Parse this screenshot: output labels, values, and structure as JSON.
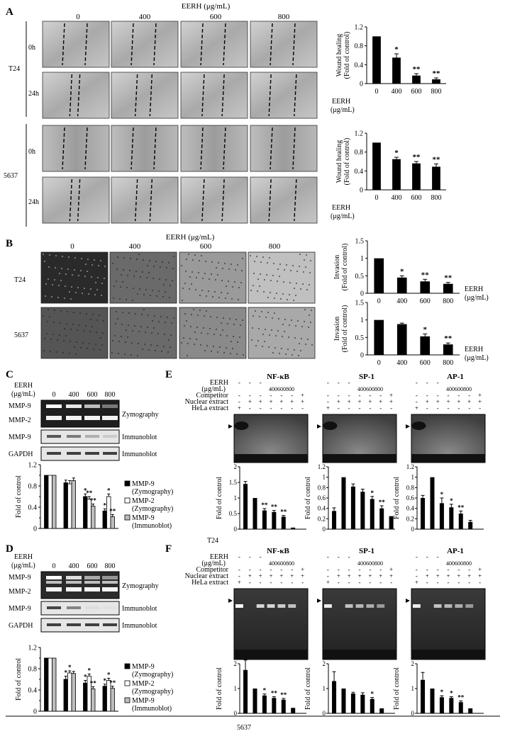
{
  "panels": {
    "A": {
      "label": "A",
      "header": "EERH (μg/mL)",
      "columns": [
        "0",
        "400",
        "600",
        "800"
      ],
      "rows": [
        "0h",
        "24h"
      ],
      "groups": [
        "T24",
        "5637"
      ],
      "charts": [
        {
          "type": "bar",
          "ylabel_1": "Wound healing",
          "ylabel_2": "(Fold of control)",
          "xlabel_1": "EERH",
          "xlabel_2": "(μg/mL)",
          "categories": [
            "0",
            "400",
            "600",
            "800"
          ],
          "values": [
            1.0,
            0.55,
            0.17,
            0.09
          ],
          "errors": [
            0.0,
            0.08,
            0.04,
            0.03
          ],
          "sig": [
            "",
            "*",
            "**",
            "**"
          ],
          "ylim": [
            0,
            1.2
          ],
          "yticks": [
            "0",
            "0.4",
            "0.8",
            "1.2"
          ]
        },
        {
          "type": "bar",
          "ylabel_1": "Wound healing",
          "ylabel_2": "(Fold of control)",
          "xlabel_1": "EERH",
          "xlabel_2": "(μg/mL)",
          "categories": [
            "0",
            "400",
            "600",
            "800"
          ],
          "values": [
            1.0,
            0.65,
            0.56,
            0.49
          ],
          "errors": [
            0.0,
            0.04,
            0.04,
            0.06
          ],
          "sig": [
            "",
            "*",
            "**",
            "**"
          ],
          "ylim": [
            0,
            1.2
          ],
          "yticks": [
            "0",
            "0.4",
            "0.8",
            "1.2"
          ]
        }
      ]
    },
    "B": {
      "label": "B",
      "header": "EERH (μg/mL)",
      "columns": [
        "0",
        "400",
        "600",
        "800"
      ],
      "groups": [
        "T24",
        "5637"
      ],
      "charts": [
        {
          "type": "bar",
          "ylabel_1": "Invasion",
          "ylabel_2": "(Fold of control)",
          "xlabel_1": "EERH",
          "xlabel_2": "(μg/mL)",
          "categories": [
            "0",
            "400",
            "600",
            "800"
          ],
          "values": [
            1.0,
            0.45,
            0.34,
            0.27
          ],
          "errors": [
            0.0,
            0.05,
            0.06,
            0.04
          ],
          "sig": [
            "",
            "*",
            "**",
            "**"
          ],
          "ylim": [
            0,
            1.5
          ],
          "yticks": [
            "0",
            "0.5",
            "1",
            "1.5"
          ]
        },
        {
          "type": "bar",
          "ylabel_1": "Invasion",
          "ylabel_2": "(Fold of control)",
          "xlabel_1": "EERH",
          "xlabel_2": "(μg/mL)",
          "categories": [
            "0",
            "400",
            "600",
            "800"
          ],
          "values": [
            1.0,
            0.88,
            0.53,
            0.3
          ],
          "errors": [
            0.0,
            0.03,
            0.07,
            0.04
          ],
          "sig": [
            "",
            "",
            "*",
            "**"
          ],
          "ylim": [
            0,
            1.5
          ],
          "yticks": [
            "0",
            "0.5",
            "1",
            "1.5"
          ]
        }
      ]
    },
    "C": {
      "label": "C",
      "eerh_1": "EERH",
      "eerh_2": "(μg/mL)",
      "lanes": [
        "0",
        "400",
        "600",
        "800"
      ],
      "blot_rows": [
        {
          "bands": [
            "MMP-9",
            "MMP-2"
          ],
          "method": "Zymography"
        },
        {
          "bands": [
            "MMP-9"
          ],
          "method": "Immunoblot"
        },
        {
          "bands": [
            "GAPDH"
          ],
          "method": "Immunoblot"
        }
      ],
      "chart": {
        "type": "bar",
        "ylabel": "Fold of control",
        "categories": [
          "0",
          "400",
          "600",
          "800"
        ],
        "series": [
          {
            "name_1": "MMP-9",
            "name_2": "(Zymography)",
            "color": "#000000",
            "values": [
              1.0,
              0.86,
              0.6,
              0.33
            ],
            "errors": [
              0.0,
              0.05,
              0.05,
              0.04
            ],
            "sig": [
              "",
              "",
              "*",
              "*"
            ]
          },
          {
            "name_1": "MMP-2",
            "name_2": "(Zymography)",
            "color": "#ffffff",
            "values": [
              1.0,
              0.84,
              0.55,
              0.6
            ],
            "errors": [
              0.0,
              0.06,
              0.05,
              0.05
            ],
            "sig": [
              "",
              "",
              "**",
              "*"
            ]
          },
          {
            "name_1": "MMP-9",
            "name_2": "(Immunoblot)",
            "color": "#bdbdbd",
            "values": [
              1.0,
              0.9,
              0.42,
              0.22
            ],
            "errors": [
              0.0,
              0.05,
              0.04,
              0.04
            ],
            "sig": [
              "",
              "",
              "**",
              "**"
            ]
          }
        ],
        "ylim": [
          0,
          1.2
        ],
        "yticks": [
          "0",
          "0.4",
          "0.8",
          "1.2"
        ],
        "extra_ticks": [
          "0.2",
          "0.6",
          "1"
        ]
      }
    },
    "D": {
      "label": "D",
      "eerh_1": "EERH",
      "eerh_2": "(μg/mL)",
      "lanes": [
        "0",
        "400",
        "600",
        "800"
      ],
      "blot_rows": [
        {
          "bands": [
            "MMP-9",
            "MMP-2"
          ],
          "method": "Zymography"
        },
        {
          "bands": [
            "MMP-9"
          ],
          "method": "Immunoblot"
        },
        {
          "bands": [
            "GAPDH"
          ],
          "method": "Immunoblot"
        }
      ],
      "chart": {
        "type": "bar",
        "ylabel": "Fold of control",
        "categories": [
          "0",
          "400",
          "600",
          "800"
        ],
        "series": [
          {
            "name_1": "MMP-9",
            "name_2": "(Zymography)",
            "color": "#000000",
            "values": [
              1.0,
              0.6,
              0.53,
              0.47
            ],
            "errors": [
              0.0,
              0.06,
              0.05,
              0.04
            ],
            "sig": [
              "",
              "*",
              "*",
              "*"
            ]
          },
          {
            "name_1": "MMP-2",
            "name_2": "(Zymography)",
            "color": "#ffffff",
            "values": [
              1.0,
              0.72,
              0.66,
              0.58
            ],
            "errors": [
              0.0,
              0.04,
              0.04,
              0.04
            ],
            "sig": [
              "",
              "*",
              "*",
              "*"
            ]
          },
          {
            "name_1": "MMP-9",
            "name_2": "(Immunoblot)",
            "color": "#bdbdbd",
            "values": [
              1.0,
              0.71,
              0.42,
              0.43
            ],
            "errors": [
              0.0,
              0.04,
              0.04,
              0.04
            ],
            "sig": [
              "",
              "",
              "**",
              "**"
            ]
          }
        ],
        "ylim": [
          0,
          1.2
        ],
        "yticks": [
          "0",
          "0.4",
          "0.8",
          "1.2"
        ],
        "extra_ticks": [
          "0.2",
          "0.6",
          "1"
        ]
      }
    },
    "E": {
      "label": "E",
      "footer": "T24",
      "conditions": [
        "EERH",
        "(μg/mL)",
        "Competitor",
        "Nuclear extract",
        "HeLa extract"
      ],
      "gels": [
        {
          "title": "NF-κB",
          "doses": "400600800",
          "signs": {
            "eerh": [
              "-",
              "-",
              "-",
              "",
              "",
              "",
              ""
            ],
            "competitor": [
              "-",
              "-",
              "-",
              "-",
              "-",
              "-",
              "+"
            ],
            "nuclear": [
              "-",
              "+",
              "+",
              "+",
              "+",
              "+",
              "+"
            ],
            "hela": [
              "+",
              "-",
              "-",
              "-",
              "-",
              "-",
              "-"
            ]
          },
          "chart": {
            "ylim": [
              0,
              2
            ],
            "yticks": [
              "0",
              "0.5",
              "1",
              "1.5",
              "2"
            ],
            "values": [
              1.45,
              1.0,
              0.6,
              0.55,
              0.4,
              0.05
            ],
            "errors": [
              0.08,
              0.0,
              0.06,
              0.05,
              0.04,
              0.0
            ],
            "sig": [
              "",
              "",
              "**",
              "**",
              "**",
              ""
            ]
          }
        },
        {
          "title": "SP-1",
          "doses": "400600800",
          "signs": {
            "eerh": [
              "-",
              "-",
              "-",
              "",
              "",
              "",
              ""
            ],
            "competitor": [
              "-",
              "-",
              "-",
              "-",
              "-",
              "-",
              "+"
            ],
            "nuclear": [
              "-",
              "+",
              "+",
              "+",
              "+",
              "+",
              "+"
            ],
            "hela": [
              "+",
              "-",
              "-",
              "-",
              "-",
              "-",
              "-"
            ]
          },
          "chart": {
            "ylim": [
              0,
              1.2
            ],
            "yticks": [
              "0",
              "0.2",
              "0.4",
              "0.6",
              "0.8",
              "1",
              "1.2"
            ],
            "values": [
              0.35,
              1.0,
              0.82,
              0.72,
              0.58,
              0.4,
              0.25
            ],
            "errors": [
              0.06,
              0.0,
              0.05,
              0.05,
              0.05,
              0.05,
              0.0
            ],
            "sig": [
              "",
              "",
              "",
              "",
              "*",
              "**",
              ""
            ]
          }
        },
        {
          "title": "AP-1",
          "doses": "400600800",
          "signs": {
            "eerh": [
              "-",
              "-",
              "-",
              "",
              "",
              "",
              ""
            ],
            "competitor": [
              "-",
              "-",
              "-",
              "-",
              "-",
              "-",
              "+"
            ],
            "nuclear": [
              "-",
              "+",
              "+",
              "+",
              "+",
              "+",
              "+"
            ],
            "hela": [
              "+",
              "-",
              "-",
              "-",
              "-",
              "-",
              "-"
            ]
          },
          "chart": {
            "ylim": [
              0,
              1.2
            ],
            "yticks": [
              "0",
              "0.2",
              "0.4",
              "0.6",
              "0.8",
              "1",
              "1.2"
            ],
            "values": [
              0.6,
              1.0,
              0.5,
              0.42,
              0.3,
              0.14
            ],
            "errors": [
              0.05,
              0.0,
              0.1,
              0.06,
              0.05,
              0.03
            ],
            "sig": [
              "",
              "",
              "*",
              "*",
              "**",
              ""
            ]
          }
        }
      ]
    },
    "F": {
      "label": "F",
      "footer": "5637",
      "conditions": [
        "EERH",
        "(μg/mL)",
        "Competitor",
        "Nuclear extract",
        "HeLa extract"
      ],
      "gels": [
        {
          "title": "NF-κB",
          "doses": "400600800",
          "signs": {
            "eerh": [
              "-",
              "-",
              "-",
              "",
              "",
              "",
              ""
            ],
            "competitor": [
              "-",
              "-",
              "-",
              "-",
              "-",
              "-",
              "+"
            ],
            "nuclear": [
              "-",
              "+",
              "+",
              "+",
              "+",
              "+",
              "+"
            ],
            "hela": [
              "+",
              "-",
              "-",
              "-",
              "-",
              "-",
              "-"
            ]
          },
          "chart": {
            "ylim": [
              0,
              2
            ],
            "yticks": [
              "0",
              "1",
              "2"
            ],
            "values": [
              1.75,
              1.0,
              0.72,
              0.62,
              0.55,
              0.22
            ],
            "errors": [
              0.4,
              0.0,
              0.06,
              0.05,
              0.05,
              0.0
            ],
            "sig": [
              "",
              "",
              "*",
              "**",
              "**",
              ""
            ]
          }
        },
        {
          "title": "SP-1",
          "doses": "400600800",
          "signs": {
            "eerh": [
              "-",
              "-",
              "-",
              "",
              "",
              "",
              ""
            ],
            "competitor": [
              "-",
              "-",
              "-",
              "-",
              "-",
              "-",
              "+"
            ],
            "nuclear": [
              "-",
              "+",
              "+",
              "+",
              "+",
              "+",
              "+"
            ],
            "hela": [
              "+",
              "-",
              "-",
              "-",
              "-",
              "-",
              "-"
            ]
          },
          "chart": {
            "ylim": [
              0,
              2
            ],
            "yticks": [
              "0",
              "1",
              "2"
            ],
            "values": [
              1.3,
              1.0,
              0.8,
              0.75,
              0.58,
              0.2
            ],
            "errors": [
              0.38,
              0.0,
              0.05,
              0.08,
              0.06,
              0.0
            ],
            "sig": [
              "",
              "",
              "",
              "",
              "*",
              ""
            ]
          }
        },
        {
          "title": "AP-1",
          "doses": "400600800",
          "signs": {
            "eerh": [
              "-",
              "-",
              "-",
              "",
              "",
              "",
              ""
            ],
            "competitor": [
              "-",
              "-",
              "-",
              "-",
              "-",
              "-",
              "+"
            ],
            "nuclear": [
              "-",
              "+",
              "+",
              "+",
              "+",
              "+",
              "+"
            ],
            "hela": [
              "+",
              "-",
              "-",
              "-",
              "-",
              "-",
              "-"
            ]
          },
          "chart": {
            "ylim": [
              0,
              2
            ],
            "yticks": [
              "0",
              "1",
              "2"
            ],
            "values": [
              1.35,
              1.0,
              0.65,
              0.62,
              0.45,
              0.2
            ],
            "errors": [
              0.3,
              0.0,
              0.06,
              0.05,
              0.05,
              0.0
            ],
            "sig": [
              "",
              "",
              "*",
              "*",
              "**",
              ""
            ]
          }
        }
      ]
    }
  },
  "colors": {
    "bar": "#000000",
    "error": "#000000",
    "axis": "#000000",
    "gel_dark": "#111111",
    "gel_light": "#e8e8e8"
  }
}
